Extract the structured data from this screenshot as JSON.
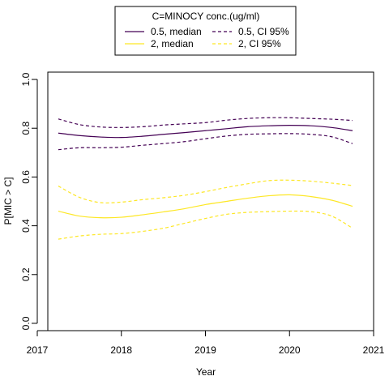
{
  "chart_data": {
    "type": "line",
    "xlabel": "Year",
    "ylabel": "P[MIC > C]",
    "xlim": [
      2017,
      2021
    ],
    "ylim": [
      -0.03,
      1.03
    ],
    "x_ticks": [
      2017,
      2018,
      2019,
      2020,
      2021
    ],
    "x_tick_labels": [
      "2017",
      "2018",
      "2019",
      "2020",
      "2021"
    ],
    "y_ticks": [
      0.0,
      0.2,
      0.4,
      0.6,
      0.8,
      1.0
    ],
    "y_tick_labels": [
      "0.0",
      "0.2",
      "0.4",
      "0.6",
      "0.8",
      "1.0"
    ],
    "grid": false,
    "legend": {
      "title": "C=MINOCY conc.(ug/ml)",
      "placement": "top-center, outside plot",
      "entries": [
        "0.5, median",
        "0.5, CI 95%",
        "2, median",
        "2, CI 95%"
      ]
    },
    "x": [
      2017.25,
      2017.5,
      2017.75,
      2018.0,
      2018.25,
      2018.5,
      2018.75,
      2019.0,
      2019.25,
      2019.5,
      2019.75,
      2020.0,
      2020.25,
      2020.5,
      2020.75
    ],
    "series": [
      {
        "name": "0.5, median",
        "group": "0.5",
        "style": "solid",
        "color": "#440154",
        "values": [
          0.78,
          0.77,
          0.764,
          0.762,
          0.767,
          0.775,
          0.782,
          0.79,
          0.798,
          0.806,
          0.81,
          0.812,
          0.81,
          0.803,
          0.79
        ]
      },
      {
        "name": "0.5, CI 95%",
        "group": "0.5",
        "style": "dashed",
        "color": "#440154",
        "band": "upper",
        "values": [
          0.838,
          0.815,
          0.805,
          0.803,
          0.806,
          0.813,
          0.818,
          0.823,
          0.833,
          0.84,
          0.843,
          0.843,
          0.84,
          0.837,
          0.832
        ]
      },
      {
        "name": "0.5, CI 95%",
        "group": "0.5",
        "style": "dashed",
        "color": "#440154",
        "band": "lower",
        "values": [
          0.712,
          0.72,
          0.72,
          0.722,
          0.73,
          0.737,
          0.745,
          0.757,
          0.768,
          0.775,
          0.777,
          0.778,
          0.775,
          0.765,
          0.737
        ]
      },
      {
        "name": "2, median",
        "group": "2",
        "style": "solid",
        "color": "#FDE725",
        "values": [
          0.46,
          0.44,
          0.433,
          0.435,
          0.445,
          0.457,
          0.47,
          0.487,
          0.5,
          0.513,
          0.523,
          0.527,
          0.52,
          0.505,
          0.48
        ]
      },
      {
        "name": "2, CI 95%",
        "group": "2",
        "style": "dashed",
        "color": "#FDE725",
        "band": "upper",
        "values": [
          0.563,
          0.517,
          0.495,
          0.497,
          0.507,
          0.515,
          0.525,
          0.54,
          0.557,
          0.572,
          0.585,
          0.587,
          0.583,
          0.575,
          0.565
        ]
      },
      {
        "name": "2, CI 95%",
        "group": "2",
        "style": "dashed",
        "color": "#FDE725",
        "band": "lower",
        "values": [
          0.345,
          0.358,
          0.365,
          0.368,
          0.377,
          0.39,
          0.41,
          0.43,
          0.447,
          0.455,
          0.458,
          0.46,
          0.458,
          0.44,
          0.39
        ]
      }
    ]
  }
}
